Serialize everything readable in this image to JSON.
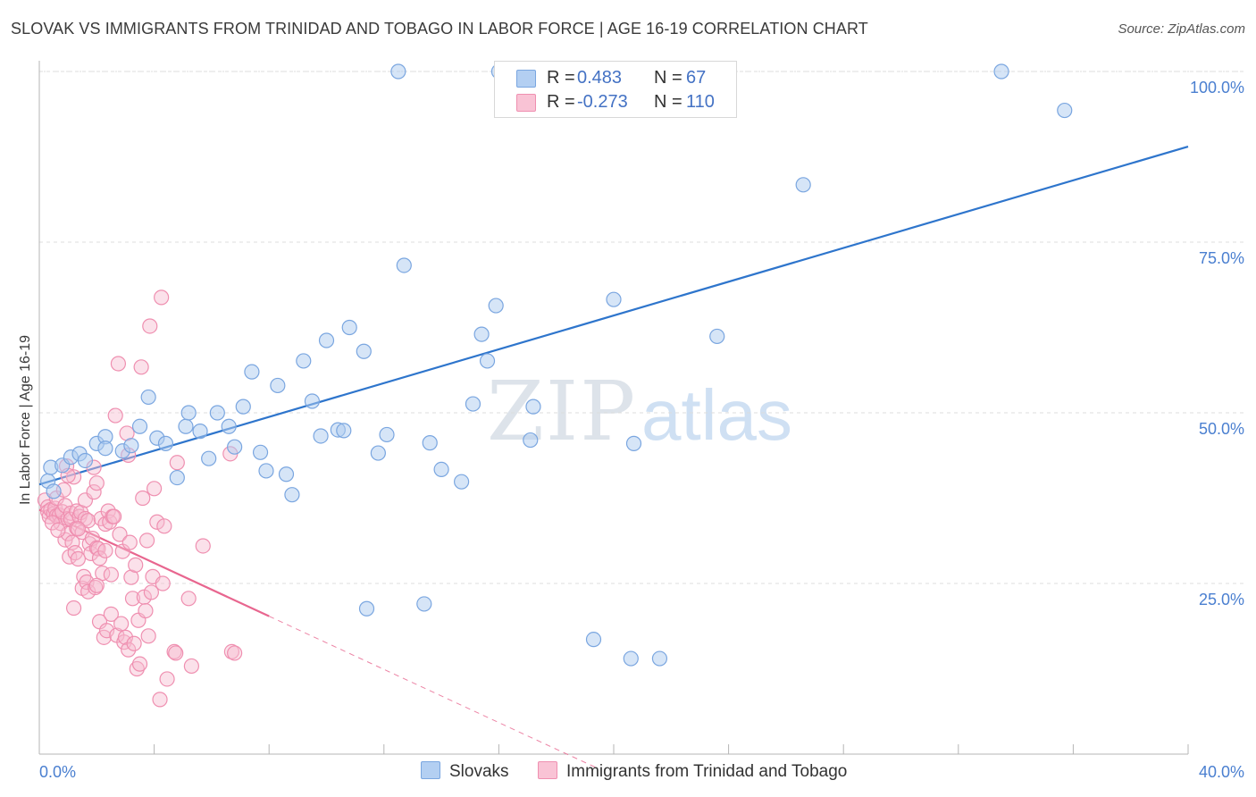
{
  "title": "SLOVAK VS IMMIGRANTS FROM TRINIDAD AND TOBAGO IN LABOR FORCE | AGE 16-19 CORRELATION CHART",
  "source": "Source: ZipAtlas.com",
  "watermark": {
    "zip": "ZIP",
    "atlas": "atlas"
  },
  "colors": {
    "slovak_fill": "#aecbf0",
    "slovak_stroke": "#7aa6e0",
    "slovak_line": "#2e75cc",
    "trinidad_fill": "#f7bcd0",
    "trinidad_stroke": "#ef8fb0",
    "trinidad_line": "#e8668f",
    "axis_text": "#4a7fd0",
    "grid": "#dcdcdc"
  },
  "legend": {
    "r_label": "R =",
    "n_label": "N =",
    "slovak": {
      "r": "0.483",
      "n": "67"
    },
    "trinidad": {
      "r": "-0.273",
      "n": "110"
    }
  },
  "bottom_legend": {
    "slovak": "Slovaks",
    "trinidad": "Immigrants from Trinidad and Tobago"
  },
  "chart_data": {
    "type": "scatter",
    "title": "SLOVAK VS IMMIGRANTS FROM TRINIDAD AND TOBAGO IN LABOR FORCE | AGE 16-19 CORRELATION CHART",
    "xlabel": "",
    "ylabel": "In Labor Force | Age 16-19",
    "xlim": [
      0,
      40
    ],
    "ylim": [
      0,
      100
    ],
    "x_tick_labels": [
      "0.0%",
      "40.0%"
    ],
    "y_ticks": [
      25,
      50,
      75,
      100
    ],
    "y_tick_labels": [
      "25.0%",
      "50.0%",
      "75.0%",
      "100.0%"
    ],
    "grid": true,
    "legend_position": "top-center",
    "series": [
      {
        "name": "Slovaks",
        "r": 0.483,
        "n": 67,
        "trend": {
          "x": [
            0,
            40
          ],
          "y": [
            39.5,
            89.0
          ]
        },
        "points": [
          [
            0.3,
            40.0
          ],
          [
            0.5,
            38.5
          ],
          [
            0.4,
            42.0
          ],
          [
            0.8,
            42.3
          ],
          [
            1.1,
            43.5
          ],
          [
            1.4,
            44.0
          ],
          [
            1.6,
            43.0
          ],
          [
            2.0,
            45.5
          ],
          [
            2.3,
            46.5
          ],
          [
            2.3,
            44.8
          ],
          [
            2.9,
            44.4
          ],
          [
            3.2,
            45.2
          ],
          [
            3.5,
            48.0
          ],
          [
            3.8,
            52.3
          ],
          [
            4.1,
            46.3
          ],
          [
            4.4,
            45.5
          ],
          [
            4.8,
            40.5
          ],
          [
            5.1,
            48.0
          ],
          [
            5.2,
            50.0
          ],
          [
            5.6,
            47.3
          ],
          [
            5.9,
            43.3
          ],
          [
            6.2,
            50.0
          ],
          [
            6.6,
            48.0
          ],
          [
            6.8,
            45.0
          ],
          [
            7.1,
            50.9
          ],
          [
            7.4,
            56.0
          ],
          [
            7.7,
            44.2
          ],
          [
            7.9,
            41.5
          ],
          [
            8.3,
            54.0
          ],
          [
            8.6,
            41.0
          ],
          [
            8.8,
            38.0
          ],
          [
            9.2,
            57.6
          ],
          [
            9.5,
            51.7
          ],
          [
            9.8,
            46.6
          ],
          [
            10.0,
            60.6
          ],
          [
            10.4,
            47.5
          ],
          [
            10.6,
            47.4
          ],
          [
            10.8,
            62.5
          ],
          [
            11.3,
            59.0
          ],
          [
            11.8,
            44.1
          ],
          [
            12.1,
            46.8
          ],
          [
            12.5,
            100
          ],
          [
            12.7,
            71.6
          ],
          [
            13.4,
            22.0
          ],
          [
            13.6,
            45.6
          ],
          [
            14.0,
            41.7
          ],
          [
            14.7,
            39.9
          ],
          [
            15.1,
            51.3
          ],
          [
            15.4,
            61.5
          ],
          [
            15.6,
            57.6
          ],
          [
            15.9,
            65.7
          ],
          [
            16.0,
            100
          ],
          [
            16.3,
            100
          ],
          [
            17.1,
            46.0
          ],
          [
            17.2,
            50.9
          ],
          [
            19.3,
            16.8
          ],
          [
            20.0,
            66.6
          ],
          [
            20.6,
            14.0
          ],
          [
            20.7,
            45.5
          ],
          [
            21.6,
            14.0
          ],
          [
            21.8,
            100
          ],
          [
            23.6,
            61.2
          ],
          [
            23.9,
            100
          ],
          [
            26.6,
            83.4
          ],
          [
            33.5,
            100
          ],
          [
            35.7,
            94.3
          ],
          [
            11.4,
            21.3
          ]
        ]
      },
      {
        "name": "Immigrants from Trinidad and Tobago",
        "r": -0.273,
        "n": 110,
        "trend": {
          "x": [
            0,
            8
          ],
          "y": [
            35.8,
            20.2
          ]
        },
        "trend_dashed": {
          "x": [
            8,
            19.4
          ],
          "y": [
            20.2,
            -2.0
          ]
        },
        "points": [
          [
            0.2,
            37.2
          ],
          [
            0.3,
            36.2
          ],
          [
            0.3,
            35.5
          ],
          [
            0.35,
            34.8
          ],
          [
            0.4,
            35.8
          ],
          [
            0.5,
            35.2
          ],
          [
            0.55,
            36.0
          ],
          [
            0.6,
            34.9
          ],
          [
            0.6,
            37.5
          ],
          [
            0.7,
            35.0
          ],
          [
            0.75,
            33.8
          ],
          [
            0.8,
            35.5
          ],
          [
            0.85,
            38.7
          ],
          [
            0.9,
            36.4
          ],
          [
            0.9,
            31.4
          ],
          [
            0.95,
            42.2
          ],
          [
            1.0,
            34.5
          ],
          [
            1.0,
            32.3
          ],
          [
            1.05,
            28.9
          ],
          [
            1.1,
            35.3
          ],
          [
            1.1,
            34.4
          ],
          [
            1.15,
            31.0
          ],
          [
            1.2,
            21.4
          ],
          [
            1.2,
            40.6
          ],
          [
            1.25,
            29.5
          ],
          [
            1.3,
            35.6
          ],
          [
            1.3,
            33.1
          ],
          [
            1.35,
            28.6
          ],
          [
            1.4,
            34.8
          ],
          [
            1.45,
            35.4
          ],
          [
            1.5,
            32.5
          ],
          [
            1.5,
            24.3
          ],
          [
            1.55,
            26.0
          ],
          [
            1.6,
            37.2
          ],
          [
            1.6,
            34.5
          ],
          [
            1.65,
            25.2
          ],
          [
            1.7,
            34.2
          ],
          [
            1.7,
            23.8
          ],
          [
            1.75,
            30.8
          ],
          [
            1.8,
            29.4
          ],
          [
            1.85,
            31.6
          ],
          [
            1.9,
            42.0
          ],
          [
            1.9,
            38.4
          ],
          [
            1.95,
            24.4
          ],
          [
            2.0,
            39.7
          ],
          [
            2.0,
            30.2
          ],
          [
            2.05,
            30.1
          ],
          [
            2.1,
            28.7
          ],
          [
            2.1,
            19.4
          ],
          [
            2.15,
            34.5
          ],
          [
            2.2,
            26.5
          ],
          [
            2.25,
            17.1
          ],
          [
            2.3,
            33.7
          ],
          [
            2.3,
            29.8
          ],
          [
            2.35,
            18.1
          ],
          [
            2.4,
            35.6
          ],
          [
            2.45,
            34.0
          ],
          [
            2.5,
            26.3
          ],
          [
            2.5,
            20.5
          ],
          [
            2.55,
            34.8
          ],
          [
            2.6,
            34.8
          ],
          [
            2.65,
            49.6
          ],
          [
            2.7,
            17.4
          ],
          [
            2.75,
            57.2
          ],
          [
            2.8,
            32.2
          ],
          [
            2.85,
            19.1
          ],
          [
            2.9,
            29.7
          ],
          [
            2.95,
            16.4
          ],
          [
            3.0,
            17.1
          ],
          [
            3.05,
            47.0
          ],
          [
            3.1,
            43.8
          ],
          [
            3.1,
            15.3
          ],
          [
            3.15,
            31.0
          ],
          [
            3.2,
            25.9
          ],
          [
            3.25,
            22.8
          ],
          [
            3.3,
            16.2
          ],
          [
            3.35,
            27.7
          ],
          [
            3.4,
            12.5
          ],
          [
            3.45,
            19.6
          ],
          [
            3.5,
            13.2
          ],
          [
            3.55,
            56.7
          ],
          [
            3.6,
            37.5
          ],
          [
            3.65,
            23.0
          ],
          [
            3.7,
            21.0
          ],
          [
            3.75,
            31.3
          ],
          [
            3.8,
            17.3
          ],
          [
            3.85,
            62.7
          ],
          [
            3.9,
            23.7
          ],
          [
            3.95,
            26.0
          ],
          [
            4.0,
            38.9
          ],
          [
            4.1,
            34.0
          ],
          [
            4.2,
            8.0
          ],
          [
            4.25,
            66.9
          ],
          [
            4.3,
            25.0
          ],
          [
            4.35,
            33.4
          ],
          [
            4.45,
            11.0
          ],
          [
            4.7,
            15.0
          ],
          [
            4.75,
            14.8
          ],
          [
            4.8,
            42.7
          ],
          [
            5.2,
            22.8
          ],
          [
            5.3,
            12.9
          ],
          [
            5.7,
            30.5
          ],
          [
            6.7,
            15.0
          ],
          [
            6.8,
            14.8
          ],
          [
            6.65,
            44.0
          ],
          [
            0.45,
            33.9
          ],
          [
            0.65,
            32.8
          ],
          [
            1.0,
            40.8
          ],
          [
            1.35,
            33.0
          ],
          [
            2.0,
            24.7
          ]
        ]
      }
    ]
  }
}
